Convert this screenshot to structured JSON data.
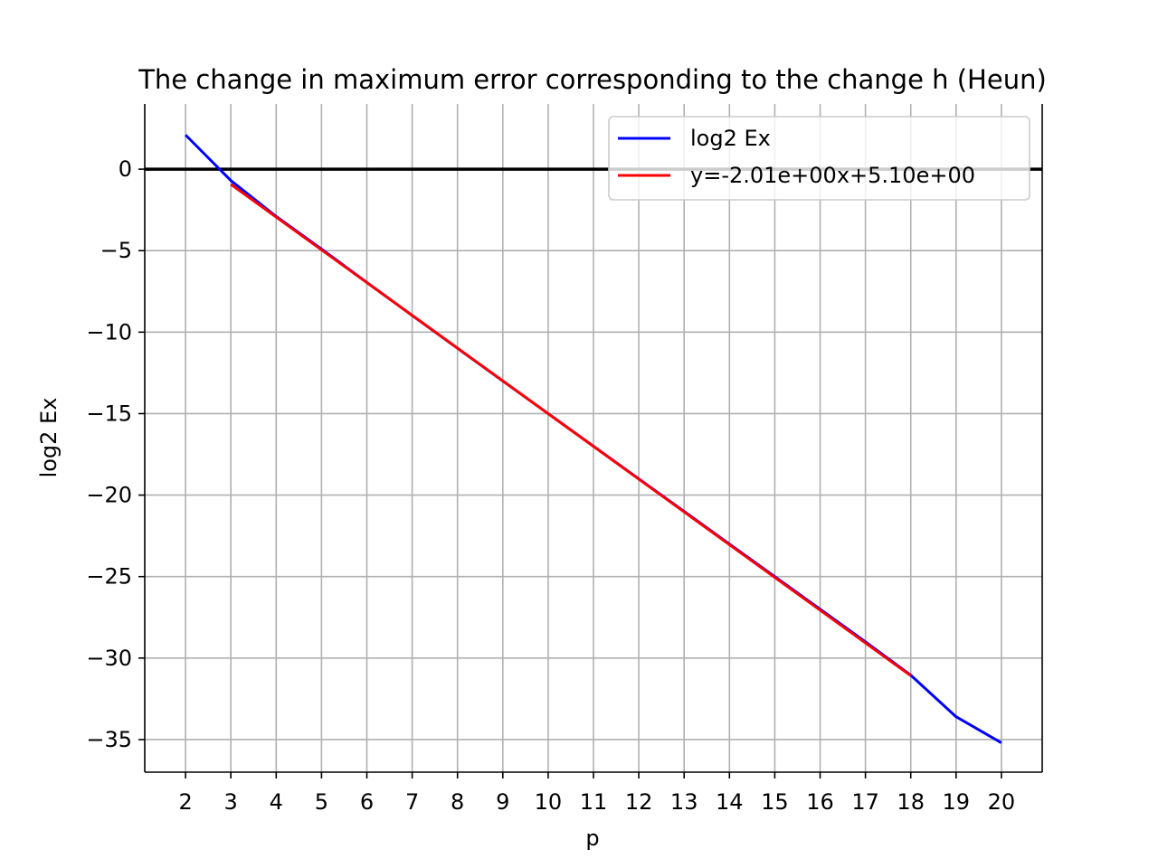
{
  "chart_data": {
    "type": "line",
    "title": "The change in maximum error corresponding to the change h (Heun)",
    "xlabel": "p",
    "ylabel": "log2 Ex",
    "xlim": [
      1.1,
      20.9
    ],
    "ylim": [
      -37,
      4
    ],
    "xticks": [
      2,
      3,
      4,
      5,
      6,
      7,
      8,
      9,
      10,
      11,
      12,
      13,
      14,
      15,
      16,
      17,
      18,
      19,
      20
    ],
    "yticks": [
      0,
      -5,
      -10,
      -15,
      -20,
      -25,
      -30,
      -35
    ],
    "ytick_labels": [
      "0",
      "−5",
      "−10",
      "−15",
      "−20",
      "−25",
      "−30",
      "−35"
    ],
    "grid": true,
    "reference_line": {
      "y": 0,
      "color": "#000000"
    },
    "legend_position": "top-right",
    "series": [
      {
        "name": "log2 Ex",
        "color": "#0000ff",
        "x": [
          2,
          3,
          4,
          5,
          6,
          7,
          8,
          9,
          10,
          11,
          12,
          13,
          14,
          15,
          16,
          17,
          18,
          19,
          20
        ],
        "y": [
          2.1,
          -0.7,
          -2.9,
          -4.9,
          -6.95,
          -8.98,
          -10.99,
          -13.0,
          -15.0,
          -17.0,
          -19.0,
          -21.0,
          -23.0,
          -25.0,
          -27.0,
          -29.0,
          -31.05,
          -33.6,
          -35.2
        ]
      },
      {
        "name": "y=-2.01e+00x+5.10e+00",
        "color": "#ff0000",
        "x": [
          3,
          18
        ],
        "y": [
          -0.93,
          -31.08
        ]
      }
    ]
  }
}
